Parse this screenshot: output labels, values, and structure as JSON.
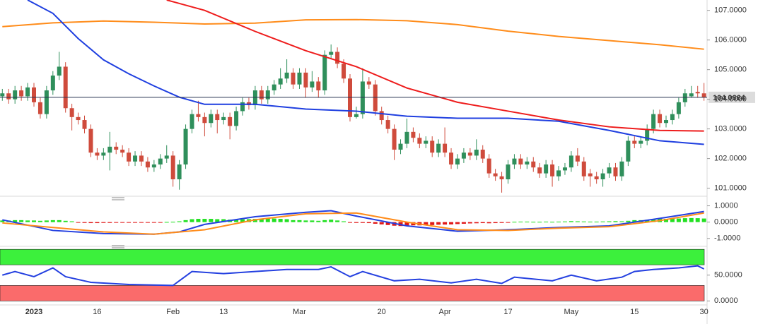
{
  "chart_data": [
    {
      "type": "candlestick",
      "categories": [
        null,
        null,
        null,
        null,
        null,
        "2023",
        null,
        null,
        null,
        null,
        null,
        null,
        null,
        null,
        null,
        "16",
        null,
        null,
        null,
        null,
        null,
        null,
        null,
        null,
        null,
        null,
        null,
        "Feb",
        null,
        null,
        null,
        null,
        null,
        null,
        null,
        "13",
        null,
        null,
        null,
        null,
        null,
        null,
        null,
        null,
        null,
        null,
        null,
        "Mar",
        null,
        null,
        null,
        null,
        null,
        null,
        null,
        null,
        null,
        null,
        null,
        null,
        "20",
        null,
        null,
        null,
        null,
        null,
        null,
        null,
        null,
        null,
        "Apr",
        null,
        null,
        null,
        null,
        null,
        null,
        null,
        null,
        null,
        "17",
        null,
        null,
        null,
        null,
        null,
        null,
        null,
        null,
        null,
        "May",
        null,
        null,
        null,
        null,
        null,
        null,
        null,
        null,
        null,
        "15",
        null,
        null,
        null,
        null,
        null,
        null,
        null,
        null,
        null,
        null,
        "30"
      ],
      "open": [
        104.1,
        104.2,
        104.0,
        104.3,
        104.1,
        104.4,
        103.9,
        103.5,
        104.3,
        104.8,
        105.1,
        103.7,
        103.4,
        103.3,
        103.0,
        102.2,
        102.1,
        102.2,
        102.4,
        102.3,
        102.2,
        101.9,
        102.1,
        101.9,
        101.7,
        101.8,
        102.0,
        102.1,
        101.3,
        101.8,
        103.0,
        103.5,
        103.4,
        103.2,
        103.5,
        103.3,
        103.4,
        103.1,
        103.6,
        103.9,
        103.8,
        104.3,
        104.0,
        104.3,
        104.5,
        104.7,
        104.9,
        104.5,
        104.9,
        104.4,
        104.6,
        104.3,
        105.5,
        105.6,
        105.2,
        104.7,
        103.4,
        103.5,
        104.6,
        104.5,
        103.6,
        103.3,
        103.0,
        102.3,
        102.5,
        102.9,
        102.7,
        102.5,
        102.6,
        102.2,
        102.5,
        102.2,
        101.8,
        102.0,
        102.2,
        102.1,
        102.3,
        102.0,
        101.5,
        101.4,
        101.3,
        101.8,
        102.0,
        101.8,
        101.9,
        101.7,
        101.5,
        101.8,
        101.4,
        101.6,
        101.7,
        102.1,
        101.9,
        101.5,
        101.4,
        101.3,
        101.5,
        101.7,
        101.4,
        101.9,
        102.6,
        102.5,
        102.6,
        103.0,
        103.5,
        103.2,
        103.3,
        103.5,
        103.9,
        104.1,
        104.25,
        104.2
      ],
      "high": [
        104.35,
        104.35,
        104.45,
        104.45,
        104.55,
        104.55,
        104.05,
        104.45,
        104.95,
        105.6,
        105.25,
        103.85,
        103.55,
        103.45,
        103.15,
        102.35,
        102.35,
        102.9,
        102.55,
        102.45,
        102.35,
        102.25,
        102.25,
        102.05,
        101.95,
        102.15,
        102.45,
        102.25,
        101.95,
        103.15,
        103.65,
        103.95,
        103.55,
        103.65,
        103.65,
        103.55,
        103.55,
        103.75,
        104.05,
        104.05,
        104.45,
        104.45,
        104.45,
        104.65,
        105.05,
        105.35,
        105.05,
        105.05,
        105.05,
        104.95,
        104.75,
        105.65,
        105.85,
        105.75,
        105.35,
        104.85,
        103.75,
        105.05,
        104.75,
        104.65,
        103.75,
        103.45,
        103.15,
        102.65,
        103.35,
        103.05,
        102.85,
        102.75,
        102.75,
        102.65,
        103.05,
        102.35,
        102.15,
        102.35,
        102.35,
        102.65,
        102.45,
        102.15,
        101.65,
        101.55,
        101.95,
        102.15,
        102.15,
        102.05,
        102.05,
        101.85,
        101.95,
        101.95,
        101.75,
        101.85,
        102.25,
        102.35,
        102.05,
        101.65,
        101.55,
        101.65,
        101.85,
        101.85,
        102.05,
        102.75,
        102.75,
        102.75,
        103.15,
        103.65,
        103.65,
        103.45,
        103.65,
        104.05,
        104.35,
        104.45,
        104.45,
        104.55
      ],
      "low": [
        103.95,
        103.85,
        103.85,
        103.95,
        103.95,
        103.75,
        103.35,
        103.35,
        104.15,
        104.65,
        103.55,
        102.95,
        103.15,
        102.85,
        102.05,
        101.95,
        101.95,
        101.6,
        102.15,
        102.05,
        101.75,
        101.75,
        101.75,
        101.55,
        101.55,
        101.65,
        101.85,
        101.05,
        100.95,
        101.65,
        102.85,
        103.25,
        102.75,
        103.05,
        102.85,
        103.15,
        102.65,
        102.95,
        103.45,
        103.65,
        103.65,
        103.85,
        103.85,
        104.15,
        104.35,
        104.55,
        104.35,
        104.35,
        104.05,
        104.25,
        104.05,
        104.15,
        105.35,
        105.05,
        104.55,
        103.25,
        103.35,
        103.35,
        104.35,
        103.45,
        103.15,
        102.85,
        101.95,
        102.15,
        102.35,
        102.55,
        102.35,
        102.35,
        102.05,
        102.05,
        102.05,
        101.65,
        101.65,
        101.85,
        101.95,
        101.95,
        101.85,
        101.35,
        101.25,
        100.85,
        101.15,
        101.65,
        101.65,
        101.65,
        101.55,
        101.35,
        101.35,
        101.05,
        101.25,
        101.45,
        101.55,
        101.75,
        101.25,
        101.05,
        101.15,
        101.05,
        101.35,
        101.25,
        101.25,
        101.75,
        102.35,
        102.35,
        102.45,
        102.85,
        103.05,
        103.05,
        103.15,
        103.35,
        103.75,
        104.05,
        104.05,
        103.95
      ],
      "close": [
        104.2,
        104.0,
        104.3,
        104.1,
        104.4,
        103.9,
        103.5,
        104.3,
        104.8,
        105.1,
        103.7,
        103.4,
        103.3,
        103.0,
        102.2,
        102.1,
        102.2,
        102.4,
        102.3,
        102.2,
        101.9,
        102.1,
        101.9,
        101.7,
        101.8,
        102.0,
        102.1,
        101.3,
        101.8,
        103.0,
        103.5,
        103.4,
        103.2,
        103.5,
        103.3,
        103.4,
        103.1,
        103.6,
        103.9,
        103.8,
        104.3,
        104.0,
        104.3,
        104.5,
        104.7,
        104.9,
        104.5,
        104.9,
        104.4,
        104.6,
        104.3,
        105.5,
        105.6,
        105.2,
        104.7,
        103.4,
        103.5,
        104.6,
        104.5,
        103.6,
        103.3,
        103.0,
        102.3,
        102.5,
        102.9,
        102.7,
        102.5,
        102.6,
        102.2,
        102.5,
        102.2,
        101.8,
        102.0,
        102.2,
        102.1,
        102.3,
        102.0,
        101.5,
        101.4,
        101.3,
        101.8,
        102.0,
        101.8,
        101.9,
        101.7,
        101.5,
        101.8,
        101.4,
        101.6,
        101.7,
        102.1,
        101.9,
        101.4,
        101.4,
        101.3,
        101.5,
        101.7,
        101.4,
        101.9,
        102.6,
        102.5,
        102.6,
        103.0,
        103.5,
        103.2,
        103.3,
        103.5,
        103.9,
        104.2,
        104.2,
        104.2,
        104.0664
      ],
      "up_color": "#2f8f5b",
      "down_color": "#cf4b3c",
      "series": [
        {
          "color": "#ff8c1a",
          "x": [
            0,
            8,
            16,
            24,
            32,
            40,
            48,
            56,
            64,
            72,
            80,
            88,
            96,
            104,
            111
          ],
          "values": [
            106.45,
            106.58,
            106.64,
            106.6,
            106.54,
            106.57,
            106.68,
            106.69,
            106.65,
            106.52,
            106.3,
            106.12,
            105.98,
            105.84,
            105.69
          ]
        },
        {
          "color": "#ee1c1c",
          "x": [
            26,
            32,
            40,
            48,
            56,
            64,
            72,
            80,
            88,
            96,
            104,
            111
          ],
          "values": [
            107.35,
            107.0,
            106.29,
            105.64,
            105.1,
            104.38,
            103.9,
            103.6,
            103.3,
            103.07,
            102.95,
            102.93
          ]
        },
        {
          "color": "#1f3fe0",
          "x": [
            4,
            8,
            12,
            16,
            20,
            24,
            28,
            32,
            40,
            48,
            56,
            64,
            72,
            80,
            88,
            96,
            104,
            111
          ],
          "values": [
            107.35,
            106.9,
            106.05,
            105.33,
            104.86,
            104.45,
            104.07,
            103.83,
            103.83,
            103.67,
            103.6,
            103.43,
            103.36,
            103.36,
            103.26,
            102.95,
            102.6,
            102.48
          ]
        }
      ],
      "last_price": 104.0664,
      "ylim": [
        100.8,
        107.35
      ],
      "yticks": [
        {
          "value": 101,
          "label": "101.0000"
        },
        {
          "value": 102,
          "label": "102.0000"
        },
        {
          "value": 103,
          "label": "103.0000"
        },
        {
          "value": 104,
          "label": "104.0000"
        },
        {
          "value": 105,
          "label": "105.0000"
        },
        {
          "value": 106,
          "label": "106.0000"
        },
        {
          "value": 107,
          "label": "107.0000"
        }
      ]
    },
    {
      "type": "macd",
      "histogram": {
        "up_color": "#22e022",
        "down_color": "#e01818",
        "values": [
          0.1,
          0.1,
          0.12,
          0.12,
          0.1,
          0.1,
          0.08,
          0.1,
          0.12,
          0.12,
          0.08,
          0.05,
          -0.02,
          -0.05,
          -0.06,
          -0.06,
          -0.05,
          -0.05,
          -0.04,
          -0.04,
          -0.04,
          -0.03,
          -0.03,
          -0.02,
          -0.02,
          -0.01,
          0.01,
          0.02,
          0.05,
          0.12,
          0.18,
          0.2,
          0.2,
          0.2,
          0.18,
          0.18,
          0.15,
          0.15,
          0.17,
          0.18,
          0.2,
          0.2,
          0.22,
          0.22,
          0.2,
          0.18,
          0.12,
          0.12,
          0.1,
          0.1,
          0.08,
          0.12,
          0.15,
          0.1,
          0.05,
          -0.02,
          -0.05,
          -0.05,
          -0.06,
          -0.1,
          -0.14,
          -0.18,
          -0.22,
          -0.24,
          -0.22,
          -0.2,
          -0.2,
          -0.18,
          -0.18,
          -0.16,
          -0.15,
          -0.14,
          -0.12,
          -0.1,
          -0.08,
          -0.07,
          -0.06,
          -0.07,
          -0.06,
          -0.05,
          -0.02,
          0.02,
          0.03,
          0.03,
          0.02,
          0.02,
          0.03,
          0.02,
          0.03,
          0.04,
          0.06,
          0.05,
          0.04,
          0.03,
          0.03,
          0.04,
          0.05,
          0.06,
          0.05,
          0.08,
          0.12,
          0.12,
          0.14,
          0.18,
          0.2,
          0.2,
          0.2,
          0.22,
          0.24,
          0.25,
          0.24,
          0.22
        ]
      },
      "series": [
        {
          "color": "#2440e0",
          "x": [
            0,
            8,
            16,
            24,
            28,
            32,
            40,
            48,
            52,
            56,
            64,
            72,
            80,
            88,
            96,
            104,
            111
          ],
          "values": [
            0.14,
            -0.51,
            -0.7,
            -0.74,
            -0.6,
            -0.14,
            0.33,
            0.6,
            0.7,
            0.37,
            -0.23,
            -0.56,
            -0.47,
            -0.33,
            -0.23,
            0.23,
            0.65
          ]
        },
        {
          "color": "#ff8c1a",
          "x": [
            0,
            8,
            16,
            24,
            32,
            40,
            48,
            56,
            64,
            72,
            80,
            88,
            96,
            104,
            111
          ],
          "values": [
            -0.05,
            -0.33,
            -0.6,
            -0.74,
            -0.47,
            0.14,
            0.51,
            0.56,
            0,
            -0.47,
            -0.51,
            -0.37,
            -0.28,
            0.09,
            0.56
          ]
        }
      ],
      "ylim": [
        -1.4,
        1.37
      ],
      "yticks": [
        {
          "value": -1,
          "label": "-1.0000"
        },
        {
          "value": 0,
          "label": "0.0000"
        },
        {
          "value": 1,
          "label": "1.0000"
        }
      ]
    },
    {
      "type": "line",
      "overbought": [
        70,
        100
      ],
      "oversold": [
        0,
        30
      ],
      "overbought_color": "#3cf03c",
      "oversold_color": "#fa6b6b",
      "series": [
        {
          "color": "#2440e0",
          "x": [
            0,
            2,
            5,
            8,
            10,
            14,
            20,
            27,
            30,
            35,
            40,
            45,
            50,
            52,
            55,
            57,
            62,
            66,
            71,
            75,
            79,
            81,
            87,
            90,
            94,
            98,
            100,
            103,
            107,
            110,
            111
          ],
          "values": [
            50,
            57,
            47,
            64,
            47,
            36,
            32,
            30,
            57,
            53,
            57,
            61,
            61,
            66,
            47,
            57,
            39,
            42,
            35,
            42,
            34,
            46,
            39,
            50,
            39,
            46,
            57,
            61,
            64,
            68,
            62
          ]
        }
      ],
      "ylim": [
        -5,
        103
      ],
      "yticks": [
        {
          "value": 0,
          "label": "0.0000"
        },
        {
          "value": 50,
          "label": "50.0000"
        }
      ]
    }
  ]
}
